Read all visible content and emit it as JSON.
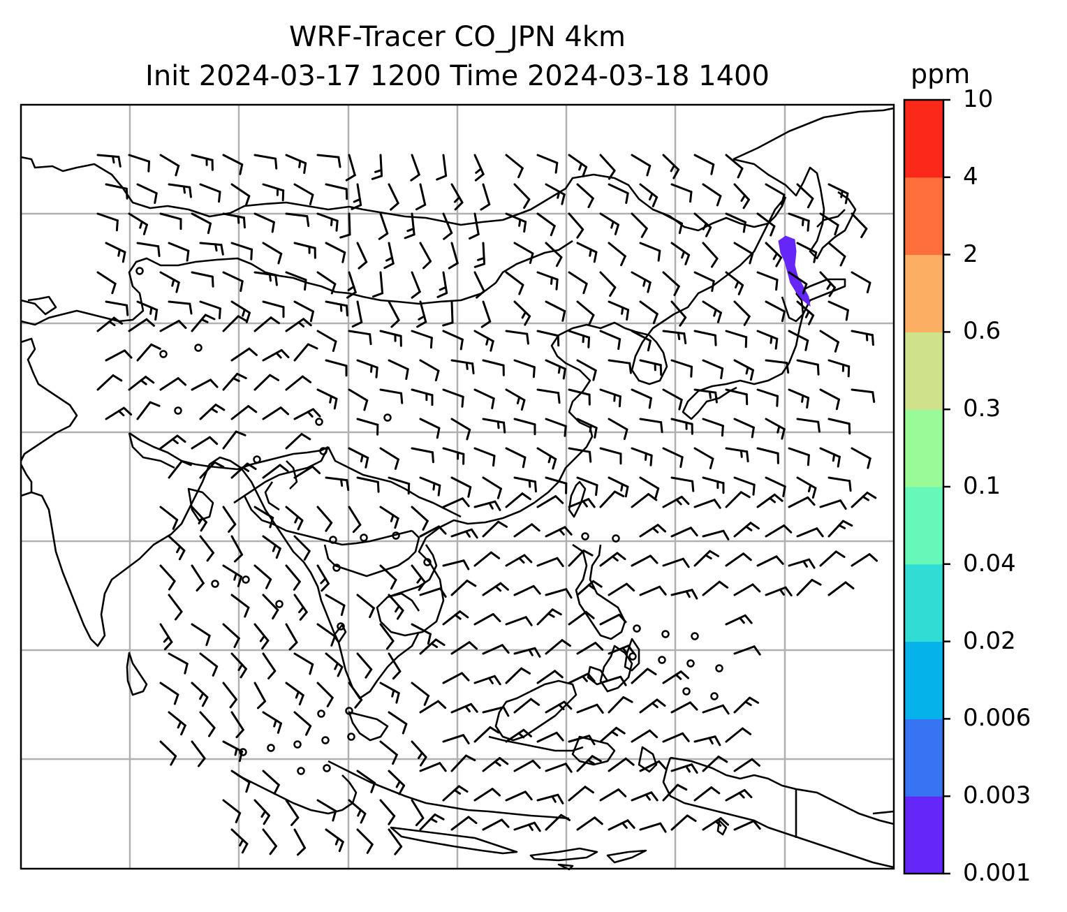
{
  "title": {
    "line1": "WRF-Tracer CO_JPN 4km",
    "line2": "Init 2024-03-17 1200 Time 2024-03-18 1400"
  },
  "colorbar": {
    "unit": "ppm",
    "levels": [
      "0.001",
      "0.003",
      "0.006",
      "0.02",
      "0.04",
      "0.1",
      "0.3",
      "0.6",
      "2",
      "4",
      "10"
    ],
    "colors": [
      "#6427f8",
      "#3674f4",
      "#05b2ea",
      "#30dcd3",
      "#66f8b8",
      "#98fb98",
      "#cfe18a",
      "#fcaf62",
      "#fe6f3c",
      "#fc291a"
    ]
  },
  "map": {
    "frame_color": "#000000",
    "grid_color": "#b0b0b0",
    "coastline_color": "#000000",
    "plume_color": "#6427f8",
    "wind_barb_color": "#000000"
  }
}
